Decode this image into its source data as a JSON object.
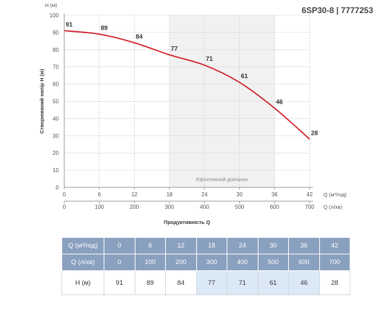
{
  "model_title": "6SP30-8 | 7777253",
  "chart_data": {
    "type": "line",
    "ylabel": "Створюваний напір H (м)",
    "yunit": "H (м)",
    "xlabel": "Продуктивність Q",
    "x_unit_m3": "Q (м³/год)",
    "x_unit_ls": "Q (л/хв)",
    "ylim": [
      0,
      100
    ],
    "xlim": [
      0,
      42
    ],
    "y_ticks": [
      0,
      10,
      20,
      30,
      40,
      50,
      60,
      70,
      80,
      90,
      100
    ],
    "x_ticks_m3": [
      0,
      6,
      12,
      18,
      24,
      30,
      36,
      42
    ],
    "x_ticks_ls": [
      0,
      100,
      200,
      300,
      400,
      500,
      600,
      700
    ],
    "grid": true,
    "efficient_range": {
      "label": "Ефективний діапазон",
      "from": 18,
      "to": 36
    },
    "series": [
      {
        "x": [
          0,
          6,
          12,
          18,
          24,
          30,
          36,
          42
        ],
        "y": [
          91,
          89,
          84,
          77,
          71,
          61,
          46,
          28
        ],
        "labels": [
          "91",
          "89",
          "84",
          "77",
          "71",
          "61",
          "46",
          "28"
        ]
      }
    ]
  },
  "table": {
    "row1_label": "Q (м³/год)",
    "row1": [
      "0",
      "6",
      "12",
      "18",
      "24",
      "30",
      "36",
      "42"
    ],
    "row2_label": "Q (л/хв)",
    "row2": [
      "0",
      "100",
      "200",
      "300",
      "400",
      "500",
      "600",
      "700"
    ],
    "row3_label": "H (м)",
    "row3": [
      "91",
      "89",
      "84",
      "77",
      "71",
      "61",
      "46",
      "28"
    ],
    "efficient_cols": [
      3,
      4,
      5,
      6
    ]
  },
  "colors": {
    "curve": "#d0202a",
    "band": "#f1f1f1",
    "table_header": "#8aa0bf",
    "table_eff": "#dbe8f5"
  }
}
